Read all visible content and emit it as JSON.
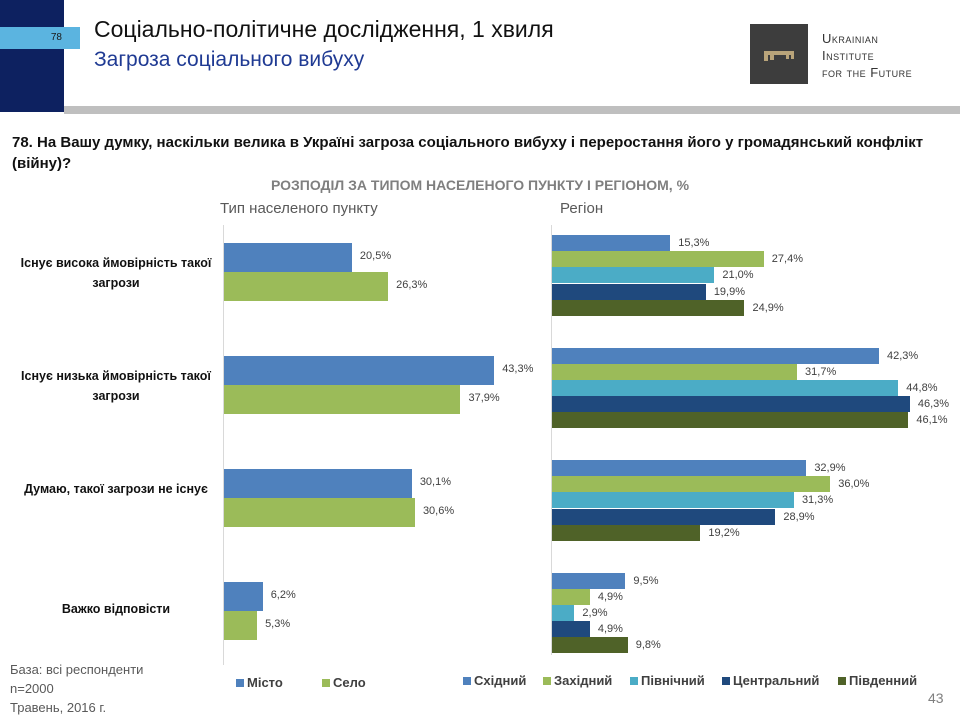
{
  "header": {
    "slide_number": "78",
    "title": "Соціально-політичне дослідження, 1 хвиля",
    "subtitle": "Загроза соціального вибуху",
    "logo_lines": [
      "Ukrainian",
      "Institute",
      "for the Future"
    ]
  },
  "question": "78. На Вашу думку, наскільки велика в Україні загроза соціального вибуху і переростання його у громадянський конфлікт (війну)?",
  "chart_data": [
    {
      "type": "bar",
      "orientation": "horizontal",
      "title": "РОЗПОДІЛ ЗА ТИПОМ НАСЕЛЕНОГО ПУНКТУ І РЕГІОНОМ, %",
      "subtitle": "Тип населеного пункту",
      "categories": [
        "Існує висока ймовірність такої загрози",
        "Існує низька ймовірність такої загрози",
        "Думаю, такої загрози не існує",
        "Важко відповісти"
      ],
      "series": [
        {
          "name": "Місто",
          "color": "#4f81bd",
          "values": [
            20.5,
            43.3,
            30.1,
            6.2
          ],
          "labels": [
            "20,5%",
            "43,3%",
            "30,1%",
            "6,2%"
          ]
        },
        {
          "name": "Село",
          "color": "#9bbb59",
          "values": [
            26.3,
            37.9,
            30.6,
            5.3
          ],
          "labels": [
            "26,3%",
            "37,9%",
            "30,6%",
            "5,3%"
          ]
        }
      ],
      "legend": "bottom"
    },
    {
      "type": "bar",
      "orientation": "horizontal",
      "subtitle": "Регіон",
      "series": [
        {
          "name": "Східний",
          "color": "#4f81bd",
          "values": [
            15.3,
            42.3,
            32.9,
            9.5
          ],
          "labels": [
            "15,3%",
            "42,3%",
            "32,9%",
            "9,5%"
          ]
        },
        {
          "name": "Західний",
          "color": "#9bbb59",
          "values": [
            27.4,
            31.7,
            36.0,
            4.9
          ],
          "labels": [
            "27,4%",
            "31,7%",
            "36,0%",
            "4,9%"
          ]
        },
        {
          "name": "Північний",
          "color": "#4bacc6",
          "values": [
            21.0,
            44.8,
            31.3,
            2.9
          ],
          "labels": [
            "21,0%",
            "44,8%",
            "31,3%",
            "2,9%"
          ]
        },
        {
          "name": "Центральний",
          "color": "#1f497d",
          "values": [
            19.9,
            46.3,
            28.9,
            4.9
          ],
          "labels": [
            "19,9%",
            "46,3%",
            "28,9%",
            "4,9%"
          ]
        },
        {
          "name": "Південний",
          "color": "#4f6228",
          "values": [
            24.9,
            46.1,
            19.2,
            9.8
          ],
          "labels": [
            "24,9%",
            "46,1%",
            "19,2%",
            "9,8%"
          ]
        }
      ],
      "legend": "bottom"
    }
  ],
  "footer": {
    "base": "База: всі респонденти",
    "n": "n=2000",
    "date": "Травень, 2016 г.",
    "page": "43"
  }
}
